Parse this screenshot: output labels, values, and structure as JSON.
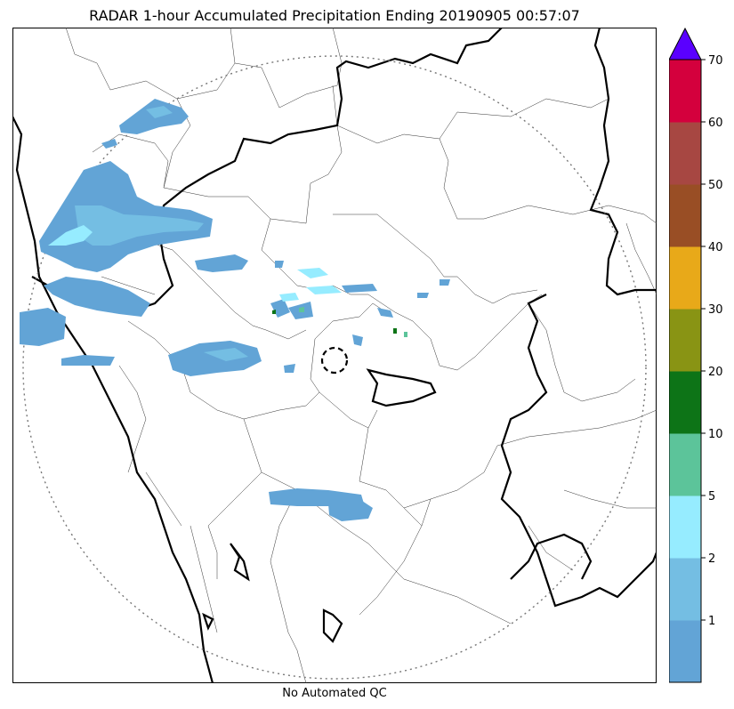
{
  "title": "RADAR 1-hour Accumulated Precipitation Ending 20190905 00:57:07",
  "footer": "No Automated QC",
  "colorbar": {
    "ticks": [
      "1",
      "2",
      "5",
      "10",
      "20",
      "30",
      "40",
      "50",
      "60",
      "70"
    ],
    "colors": [
      "#62a4d6",
      "#74bee3",
      "#96ecff",
      "#5cc49a",
      "#0d7417",
      "#899414",
      "#e8a919",
      "#994e25",
      "#a74742",
      "#d4003d"
    ],
    "extend_color": "#5a00ff"
  },
  "map_colors": {
    "light_blue": "#62a4d6",
    "mid_blue": "#74bee3",
    "cyan": "#96ecff",
    "green": "#0d7417",
    "teal": "#5cc49a"
  }
}
